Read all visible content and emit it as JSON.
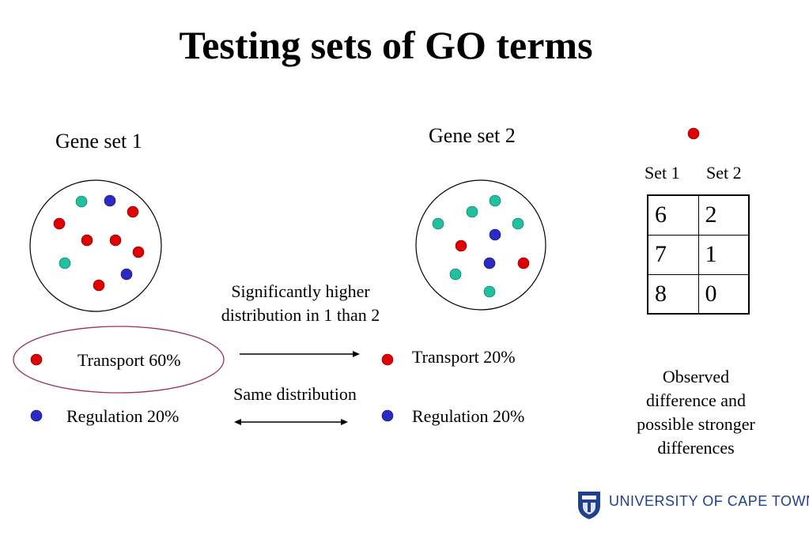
{
  "title": "Testing sets of GO terms",
  "gene_set_1": {
    "label": "Gene set 1",
    "transport_label": "Transport 60%",
    "regulation_label": "Regulation 20%"
  },
  "gene_set_2": {
    "label": "Gene set 2",
    "transport_label": "Transport 20%",
    "regulation_label": "Regulation 20%"
  },
  "comparison": {
    "transport_text_line1": "Significantly higher",
    "transport_text_line2": "distribution in 1 than 2",
    "regulation_text": "Same distribution"
  },
  "table": {
    "col1_header": "Set 1",
    "col2_header": "Set 2",
    "rows": [
      [
        "6",
        "2"
      ],
      [
        "7",
        "1"
      ],
      [
        "8",
        "0"
      ]
    ]
  },
  "note": {
    "line1": "Observed",
    "line2": "difference and",
    "line3": "possible stronger",
    "line4": "differences"
  },
  "logo": {
    "text": "UNIVERSITY OF CAPE TOWN"
  },
  "colors": {
    "transport": "#e00000",
    "regulation": "#2a2ac8",
    "other": "#20c0a0",
    "highlight_ellipse": "#a0304a",
    "logo": "#1f3f8f"
  }
}
